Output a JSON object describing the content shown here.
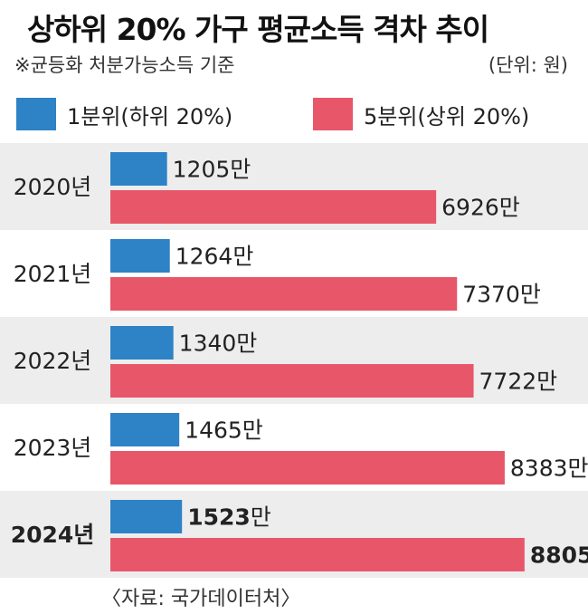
{
  "title": "상하위 20% 가구 평균소득 격차 추이",
  "subtitle": "※균등화 처분가능소득 기준",
  "unit": "(단위: 원)",
  "source": "〈자료: 국가데이터처〉",
  "value_suffix": "만",
  "colors": {
    "q1": "#2e82c6",
    "q5": "#e8566a",
    "row_band": "#ededed"
  },
  "chart_data": {
    "type": "bar",
    "orientation": "horizontal",
    "categories": [
      "2020년",
      "2021년",
      "2022년",
      "2023년",
      "2024년"
    ],
    "highlight_category": "2024년",
    "series": [
      {
        "name": "1분위(하위 20%)",
        "values": [
          1205,
          1264,
          1340,
          1465,
          1523
        ]
      },
      {
        "name": "5분위(상위 20%)",
        "values": [
          6926,
          7370,
          7722,
          8383,
          8805
        ]
      }
    ],
    "xlim": [
      0,
      10000
    ],
    "grid": false,
    "legend": "top"
  }
}
